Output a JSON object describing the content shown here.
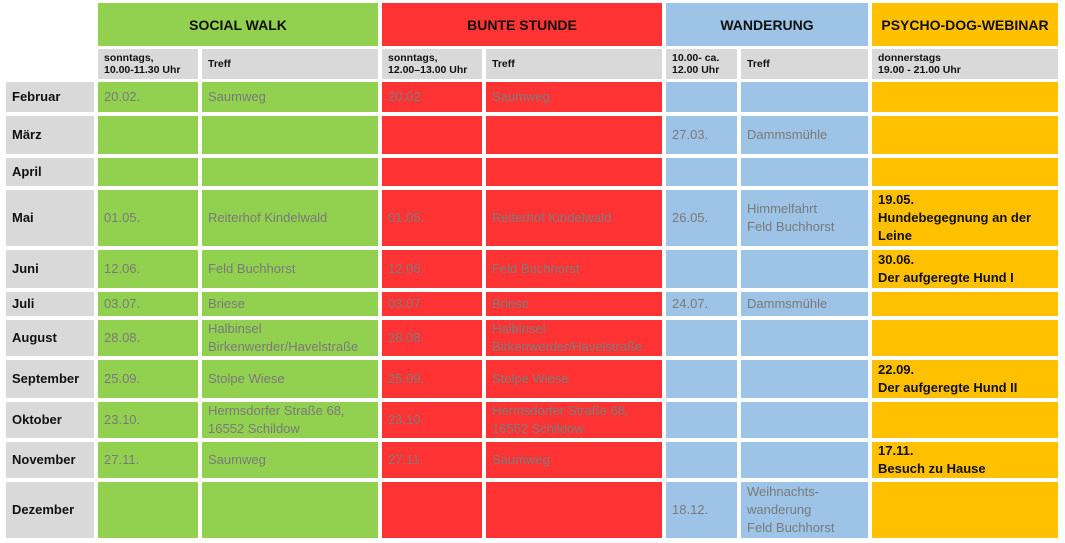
{
  "headers": {
    "social_walk": "SOCIAL WALK",
    "bunte_stunde": "BUNTE STUNDE",
    "wanderung": "WANDERUNG",
    "webinar": "PSYCHO-DOG-WEBINAR"
  },
  "subheaders": {
    "sw_time": "sonntags,\n10.00-11.30 Uhr",
    "sw_treff": "Treff",
    "bs_time": "sonntags,\n12.00–13.00 Uhr",
    "bs_treff": "Treff",
    "wa_time": "10.00- ca.\n12.00 Uhr",
    "wa_treff": "Treff",
    "web_time": "donnerstags\n19.00 - 21.00 Uhr"
  },
  "rows": [
    {
      "month": "Februar",
      "sw_date": "20.02.",
      "sw_place": "Saumweg",
      "bs_date": "20.02.",
      "bs_place": "Saumweg",
      "wa_date": "",
      "wa_place": "",
      "web": ""
    },
    {
      "month": "März",
      "sw_date": "",
      "sw_place": "",
      "bs_date": "",
      "bs_place": "",
      "wa_date": "27.03.",
      "wa_place": "Dammsmühle",
      "web": ""
    },
    {
      "month": "April",
      "sw_date": "",
      "sw_place": "",
      "bs_date": "",
      "bs_place": "",
      "wa_date": "",
      "wa_place": "",
      "web": ""
    },
    {
      "month": "Mai",
      "sw_date": "01.05.",
      "sw_place": "Reiterhof Kindelwald",
      "bs_date": "01.05.",
      "bs_place": "Reiterhof Kindelwald",
      "wa_date": "26.05.",
      "wa_place": "Himmelfahrt\nFeld Buchhorst",
      "web": "19.05.\nHundebegegnung an der\nLeine"
    },
    {
      "month": "Juni",
      "sw_date": "12.06.",
      "sw_place": "Feld Buchhorst",
      "bs_date": "12.06.",
      "bs_place": "Feld Buchhorst",
      "wa_date": "",
      "wa_place": "",
      "web": "30.06.\nDer aufgeregte Hund I"
    },
    {
      "month": "Juli",
      "sw_date": "03.07.",
      "sw_place": "Briese",
      "bs_date": "03.07.",
      "bs_place": "Briese",
      "wa_date": "24.07.",
      "wa_place": "Dammsmühle",
      "web": ""
    },
    {
      "month": "August",
      "sw_date": "28.08.",
      "sw_place": "Halbinsel\nBirkenwerder/Havelstraße",
      "bs_date": "28.08.",
      "bs_place": "Halbinsel\nBirkenwerder/Havelstraße",
      "wa_date": "",
      "wa_place": "",
      "web": ""
    },
    {
      "month": "September",
      "sw_date": "25.09.",
      "sw_place": "Stolpe Wiese",
      "bs_date": "25.09.",
      "bs_place": "Stolpe Wiese",
      "wa_date": "",
      "wa_place": "",
      "web": "22.09.\n Der aufgeregte Hund II"
    },
    {
      "month": "Oktober",
      "sw_date": "23.10.",
      "sw_place": "Hermsdorfer Straße 68,\n16552 Schildow",
      "bs_date": "23.10.",
      "bs_place": "Hermsdorfer Straße 68,\n16552 Schildow",
      "wa_date": "",
      "wa_place": "",
      "web": ""
    },
    {
      "month": "November",
      "sw_date": "27.11.",
      "sw_place": "Saumweg",
      "bs_date": "27.11.",
      "bs_place": "Saumweg",
      "wa_date": "",
      "wa_place": "",
      "web": "17.11.\nBesuch zu Hause"
    },
    {
      "month": "Dezember",
      "sw_date": "",
      "sw_place": "",
      "bs_date": "",
      "bs_place": "",
      "wa_date": "18.12.",
      "wa_place": "Weihnachts-\nwanderung\nFeld Buchhorst",
      "web": ""
    }
  ]
}
